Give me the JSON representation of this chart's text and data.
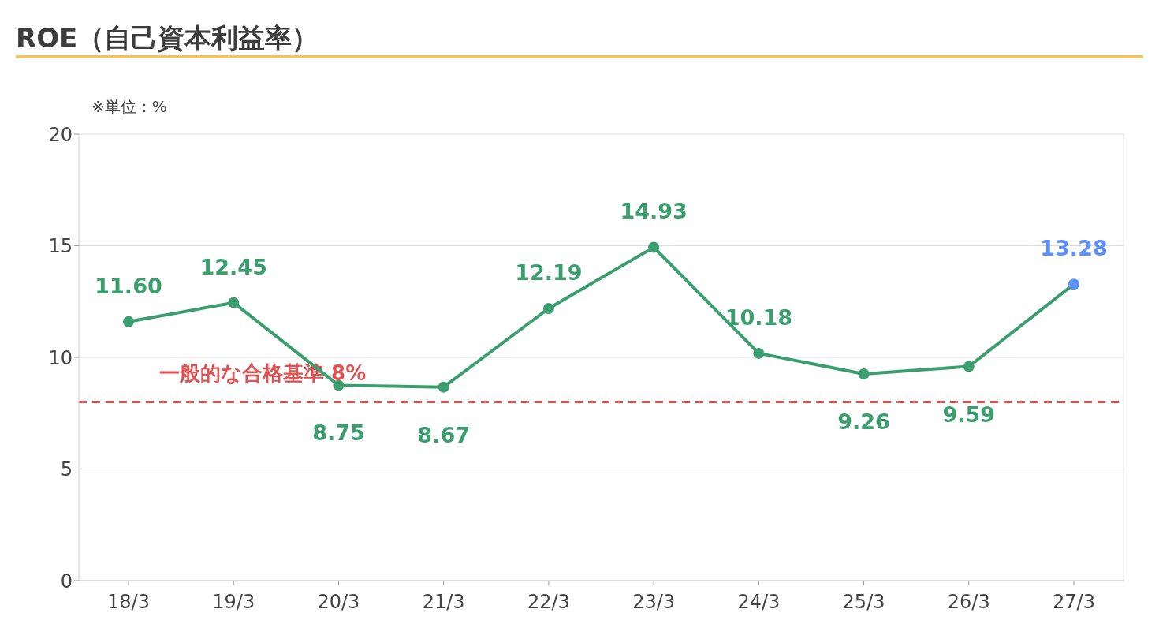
{
  "chart_data": {
    "type": "line",
    "title": "ROE（自己資本利益率）",
    "ylabel": "※単位：%",
    "categories": [
      "18/3",
      "19/3",
      "20/3",
      "21/3",
      "22/3",
      "23/3",
      "24/3",
      "25/3",
      "26/3",
      "27/3"
    ],
    "series": [
      {
        "color": "#3a9e6e",
        "values": [
          11.6,
          12.45,
          8.75,
          8.67,
          12.19,
          14.93,
          10.18,
          9.26,
          9.59,
          13.28
        ],
        "colors": [
          "#3a9e6e",
          "#3a9e6e",
          "#3a9e6e",
          "#3a9e6e",
          "#3a9e6e",
          "#3a9e6e",
          "#3a9e6e",
          "#3a9e6e",
          "#3a9e6e",
          "#5b8ff9"
        ],
        "value_labels": [
          "11.60",
          "12.45",
          "8.75",
          "8.67",
          "12.19",
          "14.93",
          "10.18",
          "9.26",
          "9.59",
          "13.28"
        ]
      }
    ],
    "ylim": [
      0,
      20
    ],
    "yticks": [
      0,
      5,
      10,
      15,
      20
    ],
    "grid": "y",
    "marker": "circle",
    "line_style": "solid",
    "legend": false,
    "ref_lines": [
      {
        "axis": "y",
        "value": 8,
        "label": "一般的な合格基準 8%",
        "color": "#e05252",
        "line_style": "dashed"
      }
    ]
  }
}
